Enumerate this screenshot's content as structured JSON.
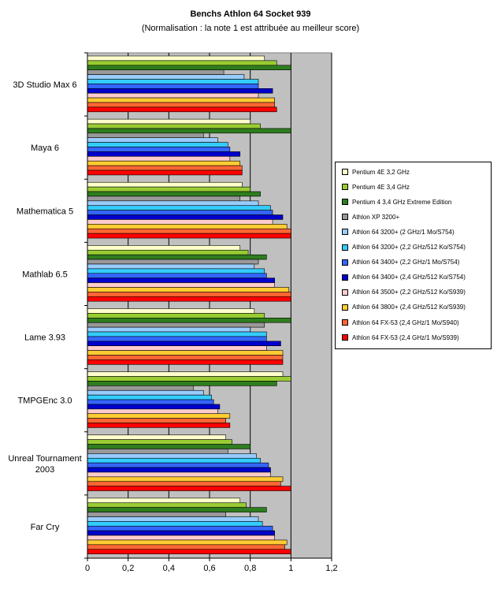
{
  "chart_data": {
    "type": "bar",
    "orientation": "horizontal",
    "title": "Benchs Athlon 64 Socket 939",
    "subtitle": "(Normalisation : la note 1 est attribuée au meilleur score)",
    "xlim": [
      0,
      1.2
    ],
    "xticks": [
      "0",
      "0,2",
      "0,4",
      "0,6",
      "0,8",
      "1",
      "1,2"
    ],
    "grid": "vertical",
    "legend_position": "right",
    "plot_background": "#c0c0c0",
    "categories": [
      "3D Studio Max 6",
      "Maya 6",
      "Mathematica 5",
      "Mathlab 6.5",
      "Lame 3.93",
      "TMPGEnc 3.0",
      "Unreal Tournament 2003",
      "Far Cry"
    ],
    "series": [
      {
        "name": "Pentium 4E 3,2 GHz",
        "color": "#ffffcc",
        "values": [
          0.87,
          0.8,
          0.76,
          0.75,
          0.82,
          0.96,
          0.68,
          0.75
        ]
      },
      {
        "name": "Pentium 4E 3,4 GHz",
        "color": "#99cc33",
        "values": [
          0.93,
          0.85,
          0.8,
          0.79,
          0.87,
          1.0,
          0.71,
          0.78
        ]
      },
      {
        "name": "Pentium 4 3,4 GHz Extreme Edition",
        "color": "#2e7d1e",
        "values": [
          1.0,
          1.0,
          0.85,
          0.88,
          1.0,
          0.93,
          0.8,
          0.88
        ]
      },
      {
        "name": "Athlon XP 3200+",
        "color": "#999999",
        "values": [
          0.67,
          0.57,
          0.75,
          0.84,
          0.87,
          0.52,
          0.69,
          0.68
        ]
      },
      {
        "name": "Athlon 64 3200+ (2 GHz/1 Mo/S754)",
        "color": "#99ccff",
        "values": [
          0.77,
          0.64,
          0.84,
          0.82,
          0.8,
          0.57,
          0.83,
          0.84
        ]
      },
      {
        "name": "Athlon 64 3200+ (2,2 GHz/512 Ko/S754)",
        "color": "#33ccff",
        "values": [
          0.84,
          0.69,
          0.9,
          0.87,
          0.88,
          0.61,
          0.85,
          0.86
        ]
      },
      {
        "name": "Athlon 64 3400+ (2,2 GHz/1 Mo/S754)",
        "color": "#3366ff",
        "values": [
          0.84,
          0.7,
          0.91,
          0.88,
          0.88,
          0.62,
          0.89,
          0.91
        ]
      },
      {
        "name": "Athlon 64 3400+ (2,4 GHz/512 Ko/S754)",
        "color": "#0000cc",
        "values": [
          0.91,
          0.75,
          0.96,
          0.92,
          0.95,
          0.65,
          0.9,
          0.92
        ]
      },
      {
        "name": "Athlon 64 3500+ (2,2 GHz/512 Ko/S939)",
        "color": "#ffcccc",
        "values": [
          0.84,
          0.7,
          0.91,
          0.92,
          0.88,
          0.64,
          0.9,
          0.92
        ]
      },
      {
        "name": "Athlon 64 3800+ (2,4 GHz/512 Ko/S939)",
        "color": "#ffcc33",
        "values": [
          0.92,
          0.75,
          0.98,
          0.99,
          0.96,
          0.7,
          0.96,
          0.98
        ]
      },
      {
        "name": "Athlon 64 FX-53 (2,4 GHz/1 Mo/S940)",
        "color": "#ff6633",
        "values": [
          0.92,
          0.76,
          1.0,
          1.0,
          0.96,
          0.68,
          0.95,
          0.97
        ]
      },
      {
        "name": "Athlon 64 FX-53 (2,4 GHz/1 Mo/S939)",
        "color": "#ff0000",
        "values": [
          0.93,
          0.76,
          1.0,
          1.0,
          0.96,
          0.7,
          1.0,
          1.0
        ]
      }
    ]
  }
}
